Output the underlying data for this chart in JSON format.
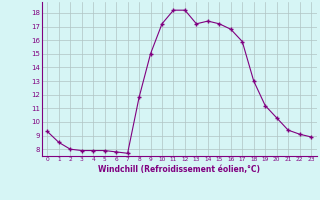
{
  "x": [
    0,
    1,
    2,
    3,
    4,
    5,
    6,
    7,
    8,
    9,
    10,
    11,
    12,
    13,
    14,
    15,
    16,
    17,
    18,
    19,
    20,
    21,
    22,
    23
  ],
  "y": [
    9.3,
    8.5,
    8.0,
    7.9,
    7.9,
    7.9,
    7.8,
    7.7,
    11.8,
    15.0,
    17.2,
    18.2,
    18.2,
    17.2,
    17.4,
    17.2,
    16.8,
    15.9,
    13.0,
    11.2,
    10.3,
    9.4,
    9.1,
    8.9
  ],
  "line_color": "#800080",
  "marker": "+",
  "bg_color": "#d6f5f5",
  "grid_color": "#b0c4c4",
  "xlabel": "Windchill (Refroidissement éolien,°C)",
  "xlabel_color": "#800080",
  "tick_color": "#800080",
  "ylabel_ticks": [
    8,
    9,
    10,
    11,
    12,
    13,
    14,
    15,
    16,
    17,
    18
  ],
  "ylim": [
    7.5,
    18.8
  ],
  "xlim": [
    -0.5,
    23.5
  ],
  "xticks": [
    0,
    1,
    2,
    3,
    4,
    5,
    6,
    7,
    8,
    9,
    10,
    11,
    12,
    13,
    14,
    15,
    16,
    17,
    18,
    19,
    20,
    21,
    22,
    23
  ]
}
